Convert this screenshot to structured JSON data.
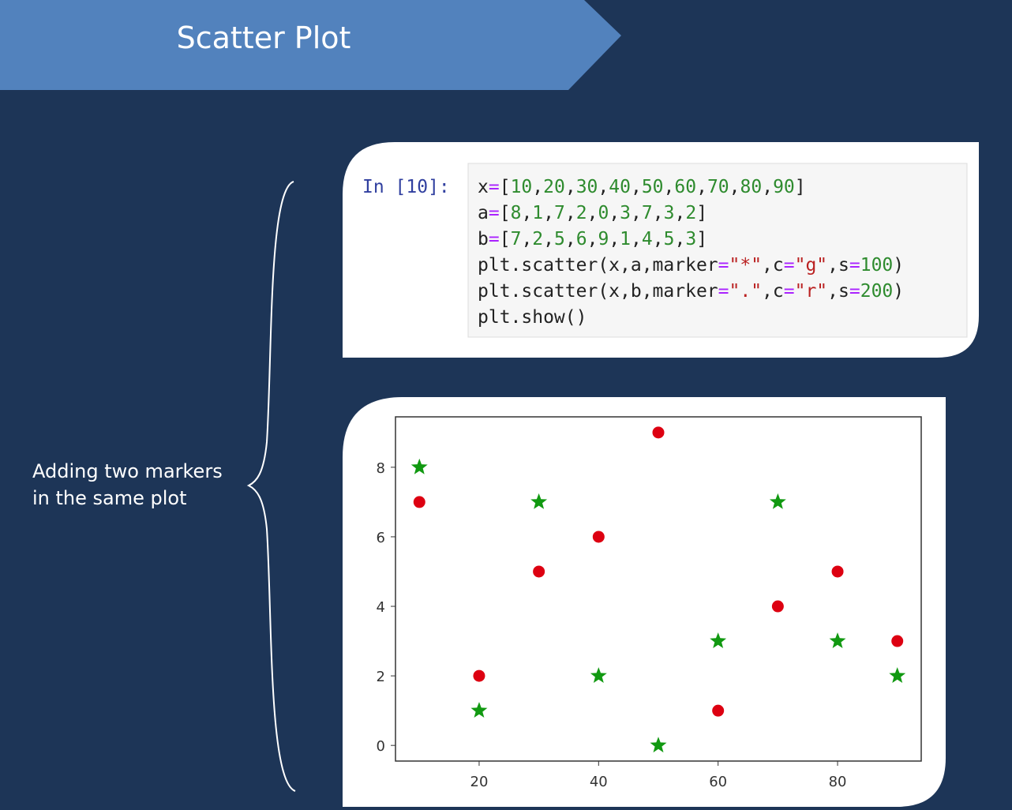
{
  "slide": {
    "title": "Scatter Plot",
    "side_text": [
      "Adding two markers",
      "in the same plot"
    ]
  },
  "code": {
    "prompt": "In [10]:",
    "lines": [
      "x=[10,20,30,40,50,60,70,80,90]",
      "a=[8,1,7,2,0,3,7,3,2]",
      "b=[7,2,5,6,9,1,4,5,3]",
      "plt.scatter(x,a,marker=\"*\",c=\"g\",s=100)",
      "plt.scatter(x,b,marker=\".\",c=\"r\",s=200)",
      "plt.show()"
    ]
  },
  "chart_data": {
    "type": "scatter",
    "x": [
      10,
      20,
      30,
      40,
      50,
      60,
      70,
      80,
      90
    ],
    "series": [
      {
        "color": "#119911",
        "marker": "star",
        "values": [
          8,
          1,
          7,
          2,
          0,
          3,
          7,
          3,
          2
        ]
      },
      {
        "color": "#dd0011",
        "marker": "circle",
        "values": [
          7,
          2,
          5,
          6,
          9,
          1,
          4,
          5,
          3
        ]
      }
    ],
    "xlim": [
      6,
      94
    ],
    "ylim": [
      -0.45,
      9.45
    ],
    "xticks": [
      20,
      40,
      60,
      80
    ],
    "yticks": [
      0,
      2,
      4,
      6,
      8
    ]
  }
}
